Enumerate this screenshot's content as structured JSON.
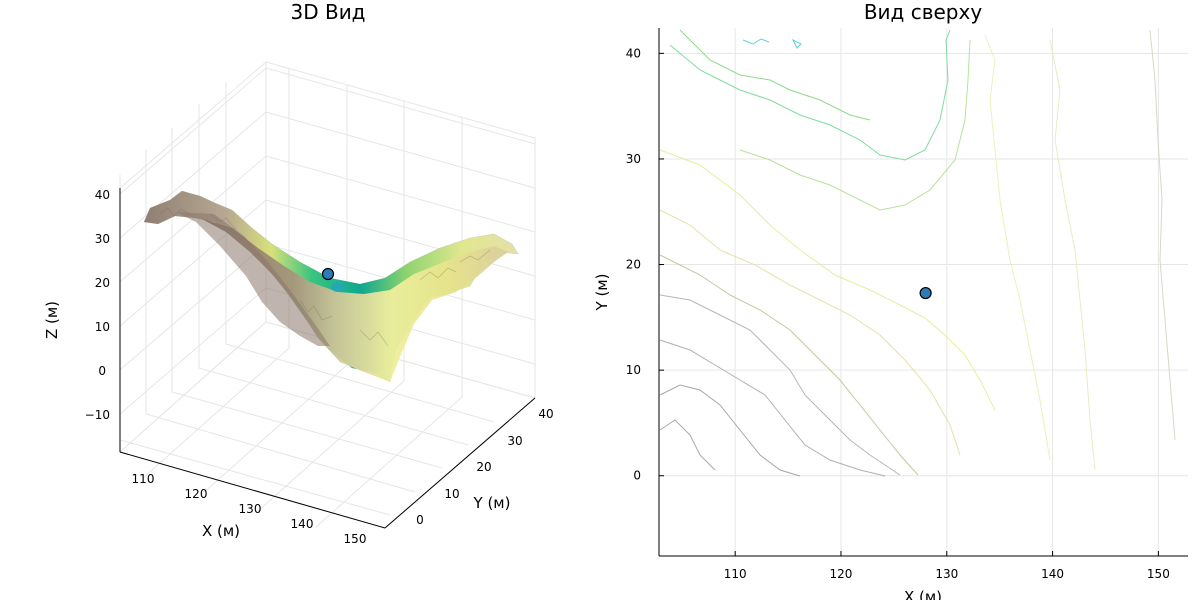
{
  "chart_data": [
    {
      "type": "surface",
      "title": "3D Вид",
      "xlabel": "X (м)",
      "ylabel": "Y (м)",
      "zlabel": "Z (м)",
      "x_ticks": [
        "110",
        "120",
        "130",
        "140",
        "150"
      ],
      "y_ticks": [
        "0",
        "10",
        "20",
        "30",
        "40"
      ],
      "z_ticks": [
        "40",
        "30",
        "20",
        "10",
        "0",
        "−10"
      ],
      "xlim": [
        105,
        152
      ],
      "ylim": [
        -5,
        42
      ],
      "zlim": [
        -18,
        42
      ],
      "grid": true,
      "surface_profile_along_x": [
        {
          "x": 105,
          "z": 34
        },
        {
          "x": 112,
          "z": 38
        },
        {
          "x": 118,
          "z": 35
        },
        {
          "x": 124,
          "z": 22
        },
        {
          "x": 130,
          "z": 12
        },
        {
          "x": 136,
          "z": 14
        },
        {
          "x": 142,
          "z": 24
        },
        {
          "x": 148,
          "z": 30
        },
        {
          "x": 152,
          "z": 28
        }
      ],
      "marker": {
        "x": 128,
        "y": 17.3,
        "z": 21
      }
    },
    {
      "type": "contour",
      "title": "Вид сверху",
      "xlabel": "X (м)",
      "ylabel": "Y (м)",
      "x_ticks": [
        110,
        120,
        130,
        140,
        150
      ],
      "y_ticks": [
        0,
        10,
        20,
        30,
        40
      ],
      "xlim": [
        102.8,
        152.8
      ],
      "ylim": [
        -7.6,
        42.4
      ],
      "grid": true,
      "marker": {
        "x": 128,
        "y": 17.3
      }
    }
  ]
}
